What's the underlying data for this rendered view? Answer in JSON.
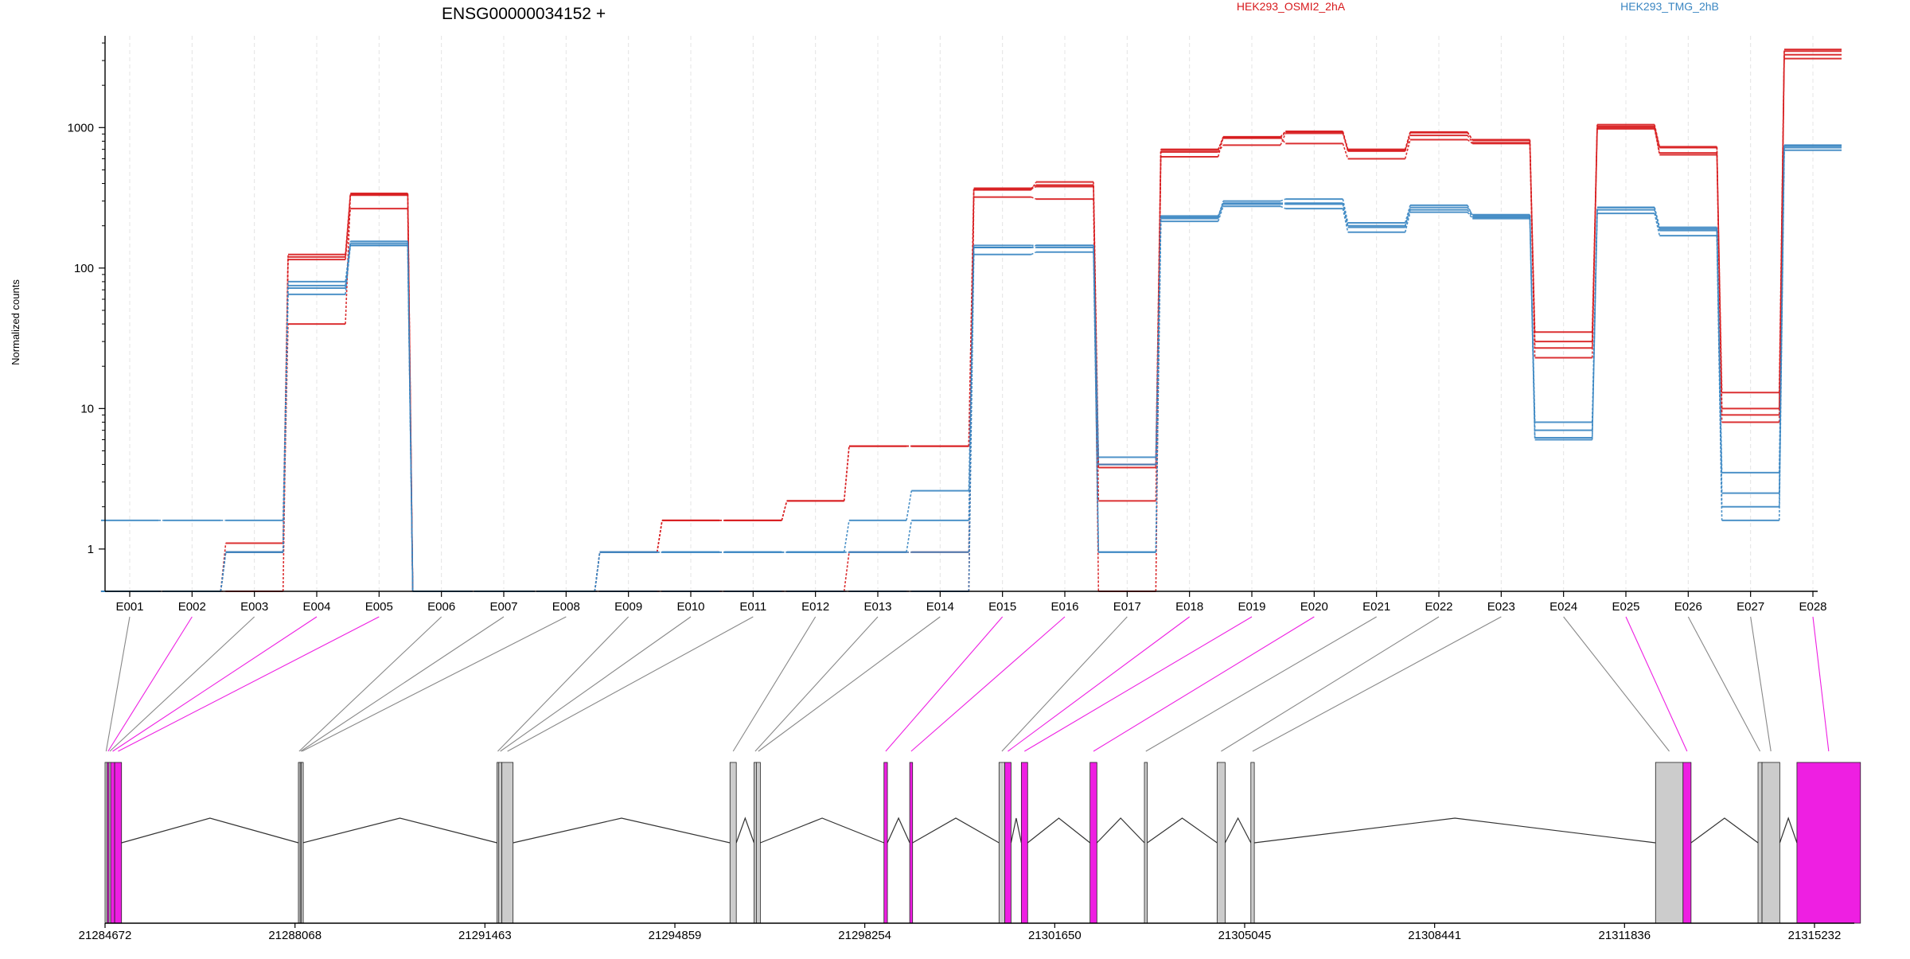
{
  "title": "ENSG00000034152 +",
  "chart_data": {
    "type": "line",
    "title": "ENSG00000034152 +",
    "ylabel": "Normalized counts",
    "yscale": "log",
    "ylim": [
      0.5,
      4500
    ],
    "yticks": [
      1,
      10,
      100,
      1000
    ],
    "ytick_labels": [
      "1",
      "10",
      "100",
      "1000"
    ],
    "categories": [
      "E001",
      "E002",
      "E003",
      "E004",
      "E005",
      "E006",
      "E007",
      "E008",
      "E009",
      "E010",
      "E011",
      "E012",
      "E013",
      "E014",
      "E015",
      "E016",
      "E017",
      "E018",
      "E019",
      "E020",
      "E021",
      "E022",
      "E023",
      "E024",
      "E025",
      "E026",
      "E027",
      "E028"
    ],
    "legend": [
      {
        "name": "HEK293_OSMI2_2hA",
        "color": "#d7191c"
      },
      {
        "name": "HEK293_TMG_2hB",
        "color": "#3a86c2"
      }
    ],
    "grid": true,
    "series": [
      {
        "name": "",
        "group": "HEK293_OSMI2_2hA",
        "values": [
          0.5,
          0.5,
          1.1,
          120,
          340,
          0.5,
          0.5,
          0.5,
          0.95,
          1.6,
          1.6,
          2.2,
          5.4,
          5.4,
          370,
          390,
          4,
          700,
          840,
          930,
          690,
          920,
          820,
          30,
          1050,
          730,
          10,
          3500
        ]
      },
      {
        "name": "",
        "group": "HEK293_OSMI2_2hA",
        "values": [
          0.5,
          0.5,
          0.95,
          40,
          330,
          0.5,
          0.5,
          0.5,
          0.95,
          1.6,
          1.6,
          2.2,
          5.4,
          5.4,
          360,
          410,
          3.8,
          670,
          750,
          910,
          680,
          880,
          780,
          35,
          980,
          660,
          13,
          3300
        ]
      },
      {
        "name": "",
        "group": "HEK293_OSMI2_2hA",
        "values": [
          0.5,
          0.5,
          0.5,
          115,
          265,
          0.5,
          0.5,
          0.5,
          0.5,
          0.5,
          0.5,
          0.5,
          0.5,
          0.5,
          320,
          310,
          2.2,
          620,
          850,
          770,
          600,
          820,
          770,
          23,
          1000,
          640,
          8,
          3100
        ]
      },
      {
        "name": "",
        "group": "HEK293_OSMI2_2hA",
        "values": [
          0.5,
          0.5,
          0.95,
          125,
          335,
          0.5,
          0.5,
          0.5,
          0.5,
          0.5,
          0.5,
          0.5,
          0.95,
          0.95,
          365,
          380,
          0.5,
          690,
          860,
          940,
          700,
          930,
          810,
          27,
          1020,
          720,
          9,
          3600
        ]
      },
      {
        "name": "",
        "group": "HEK293_TMG_2hB",
        "values": [
          1.6,
          1.6,
          1.6,
          80,
          155,
          0.5,
          0.5,
          0.5,
          0.95,
          0.95,
          0.95,
          0.95,
          1.6,
          2.6,
          145,
          145,
          4.5,
          230,
          300,
          310,
          210,
          280,
          235,
          8,
          270,
          190,
          3.5,
          750
        ]
      },
      {
        "name": "",
        "group": "HEK293_TMG_2hB",
        "values": [
          0.5,
          0.5,
          0.95,
          72,
          150,
          0.5,
          0.5,
          0.5,
          0.95,
          0.95,
          0.95,
          0.95,
          0.95,
          0.95,
          140,
          140,
          4,
          225,
          285,
          285,
          195,
          260,
          230,
          6,
          260,
          185,
          2.5,
          720
        ]
      },
      {
        "name": "",
        "group": "HEK293_TMG_2hB",
        "values": [
          0.5,
          0.5,
          0.95,
          65,
          145,
          0.5,
          0.5,
          0.5,
          0.5,
          0.5,
          0.5,
          0.5,
          0.5,
          0.5,
          125,
          130,
          0.95,
          215,
          275,
          265,
          180,
          250,
          225,
          6.2,
          245,
          170,
          1.6,
          690
        ]
      },
      {
        "name": "",
        "group": "HEK293_TMG_2hB",
        "values": [
          0.5,
          0.5,
          0.95,
          75,
          145,
          0.5,
          0.5,
          0.5,
          0.95,
          0.95,
          0.95,
          0.95,
          0.95,
          1.6,
          140,
          145,
          0.95,
          235,
          290,
          290,
          200,
          270,
          240,
          7,
          270,
          195,
          2,
          740
        ]
      }
    ],
    "gene_model": {
      "start": 21284672,
      "end": 21315232,
      "tick_labels": [
        "21284672",
        "21288068",
        "21291463",
        "21294859",
        "21298254",
        "21301650",
        "21305045",
        "21308441",
        "21311836",
        "21315232"
      ],
      "tick_values": [
        21284672,
        21288068,
        21291463,
        21294859,
        21298254,
        21301650,
        21305045,
        21308441,
        21311836,
        21315232
      ],
      "exon_colors": {
        "differential": "#ee1fe2",
        "non_differential": "#cccccc"
      },
      "exonic_parts": [
        {
          "id": "E001",
          "start": 21284672,
          "end": 21284710,
          "differential": false
        },
        {
          "id": "E002",
          "start": 21284710,
          "end": 21284740,
          "differential": true
        },
        {
          "id": "E003",
          "start": 21284740,
          "end": 21284770,
          "differential": false
        },
        {
          "id": "E004",
          "start": 21284770,
          "end": 21284840,
          "differential": true
        },
        {
          "id": "E005",
          "start": 21284840,
          "end": 21284960,
          "differential": true
        },
        {
          "id": "E006",
          "start": 21288050,
          "end": 21288075,
          "differential": false
        },
        {
          "id": "E007",
          "start": 21288080,
          "end": 21288100,
          "differential": false
        },
        {
          "id": "E008",
          "start": 21288100,
          "end": 21288125,
          "differential": false
        },
        {
          "id": "E009",
          "start": 21291520,
          "end": 21291545,
          "differential": false
        },
        {
          "id": "E010",
          "start": 21291550,
          "end": 21291605,
          "differential": false
        },
        {
          "id": "E011",
          "start": 21291605,
          "end": 21291800,
          "differential": false
        },
        {
          "id": "E012",
          "start": 21295590,
          "end": 21295700,
          "differential": false
        },
        {
          "id": "E013",
          "start": 21296010,
          "end": 21296050,
          "differential": false
        },
        {
          "id": "E014",
          "start": 21296050,
          "end": 21296120,
          "differential": false
        },
        {
          "id": "E015",
          "start": 21298280,
          "end": 21298340,
          "differential": true
        },
        {
          "id": "E016",
          "start": 21298730,
          "end": 21298780,
          "differential": true
        },
        {
          "id": "E017",
          "start": 21300290,
          "end": 21300390,
          "differential": false
        },
        {
          "id": "E018",
          "start": 21300390,
          "end": 21300500,
          "differential": true
        },
        {
          "id": "E019",
          "start": 21300680,
          "end": 21300790,
          "differential": true
        },
        {
          "id": "E020",
          "start": 21301880,
          "end": 21302000,
          "differential": true
        },
        {
          "id": "E021",
          "start": 21302830,
          "end": 21302880,
          "differential": false
        },
        {
          "id": "E022",
          "start": 21304100,
          "end": 21304240,
          "differential": false
        },
        {
          "id": "E023",
          "start": 21304690,
          "end": 21304750,
          "differential": false
        },
        {
          "id": "E024",
          "start": 21311760,
          "end": 21312240,
          "differential": false
        },
        {
          "id": "E025",
          "start": 21312240,
          "end": 21312380,
          "differential": true
        },
        {
          "id": "E026",
          "start": 21313550,
          "end": 21313620,
          "differential": false
        },
        {
          "id": "E027",
          "start": 21313620,
          "end": 21313930,
          "differential": false
        },
        {
          "id": "E028",
          "start": 21314230,
          "end": 21315340,
          "differential": true
        }
      ],
      "introns": [
        [
          21284960,
          21288050
        ],
        [
          21288125,
          21291520
        ],
        [
          21291800,
          21295590
        ],
        [
          21295700,
          21296010
        ],
        [
          21296120,
          21298280
        ],
        [
          21298340,
          21298730
        ],
        [
          21298780,
          21300290
        ],
        [
          21300500,
          21300680
        ],
        [
          21300790,
          21301880
        ],
        [
          21302000,
          21302830
        ],
        [
          21302880,
          21304100
        ],
        [
          21304240,
          21304690
        ],
        [
          21304750,
          21311760
        ],
        [
          21312380,
          21313550
        ],
        [
          21313930,
          21314230
        ]
      ]
    }
  }
}
